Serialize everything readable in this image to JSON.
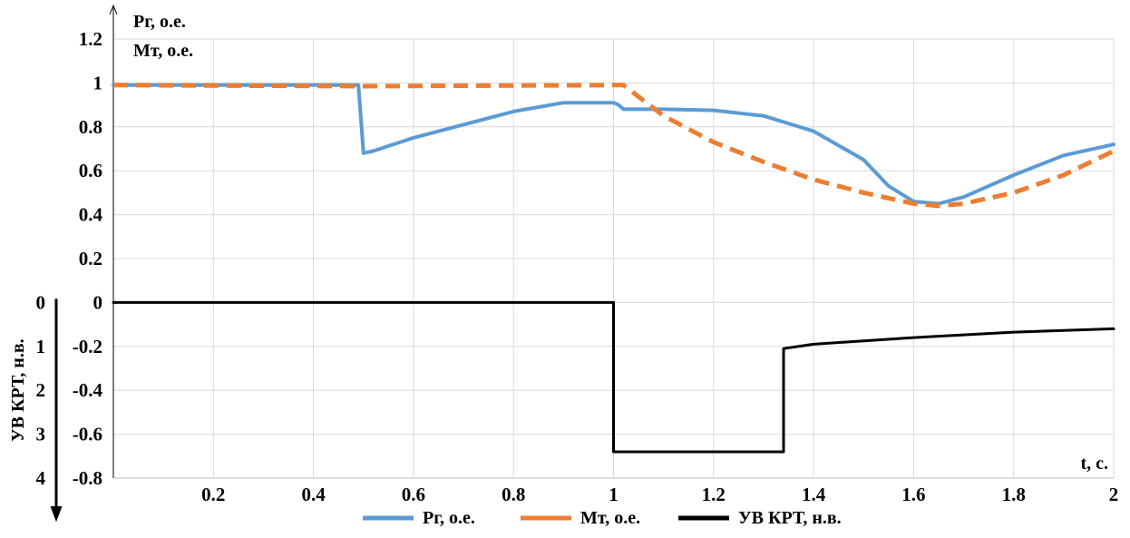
{
  "chart_data": {
    "type": "line",
    "x_axis": {
      "label": "t, с.",
      "range": [
        0,
        2
      ],
      "ticks": [
        "0.2",
        "0.4",
        "0.6",
        "0.8",
        "1",
        "1.2",
        "1.4",
        "1.6",
        "1.8",
        "2"
      ],
      "tick_values": [
        0.2,
        0.4,
        0.6,
        0.8,
        1.0,
        1.2,
        1.4,
        1.6,
        1.8,
        2.0
      ]
    },
    "y_axis": {
      "range": [
        -0.8,
        1.2
      ],
      "ticks": [
        "-0.8",
        "-0.6",
        "-0.4",
        "-0.2",
        "0",
        "0.2",
        "0.4",
        "0.6",
        "0.8",
        "1",
        "1.2"
      ],
      "tick_values": [
        -0.8,
        -0.6,
        -0.4,
        -0.2,
        0,
        0.2,
        0.4,
        0.6,
        0.8,
        1.0,
        1.2
      ]
    },
    "upper_axis_labels": [
      "Pг, о.е.",
      "Mт, о.е."
    ],
    "secondary_axis": {
      "label": "УВ КРТ, н.в.",
      "ticks": [
        "0",
        "1",
        "2",
        "3",
        "4"
      ],
      "tick_values": [
        0,
        -0.2,
        -0.4,
        -0.6,
        -0.8
      ],
      "direction": "down"
    },
    "grid": true,
    "legend_position": "bottom",
    "series": [
      {
        "name": "Pг, о.е.",
        "color": "#5b9bd5",
        "style": "solid",
        "x": [
          0,
          0.48,
          0.49,
          0.5,
          0.52,
          0.6,
          0.7,
          0.8,
          0.9,
          1.0,
          1.01,
          1.02,
          1.1,
          1.2,
          1.3,
          1.4,
          1.5,
          1.55,
          1.6,
          1.65,
          1.7,
          1.8,
          1.9,
          2.0
        ],
        "y": [
          0.99,
          0.99,
          0.99,
          0.68,
          0.69,
          0.75,
          0.81,
          0.87,
          0.91,
          0.91,
          0.9,
          0.88,
          0.88,
          0.875,
          0.85,
          0.78,
          0.65,
          0.53,
          0.46,
          0.45,
          0.48,
          0.58,
          0.67,
          0.72
        ]
      },
      {
        "name": "Mт, о.е.",
        "color": "#ed7d31",
        "style": "dashed",
        "x": [
          0,
          0.5,
          1.0,
          1.02,
          1.1,
          1.2,
          1.3,
          1.4,
          1.5,
          1.6,
          1.65,
          1.7,
          1.8,
          1.9,
          2.0
        ],
        "y": [
          0.99,
          0.985,
          0.99,
          0.99,
          0.85,
          0.73,
          0.64,
          0.56,
          0.5,
          0.45,
          0.44,
          0.45,
          0.5,
          0.58,
          0.69
        ]
      },
      {
        "name": "УВ КРТ, н.в.",
        "color": "#000000",
        "style": "solid",
        "x": [
          0,
          1.0,
          1.0,
          1.34,
          1.34,
          1.4,
          1.6,
          1.8,
          2.0
        ],
        "y": [
          0,
          0,
          -0.68,
          -0.68,
          -0.21,
          -0.19,
          -0.16,
          -0.135,
          -0.12
        ]
      }
    ]
  }
}
